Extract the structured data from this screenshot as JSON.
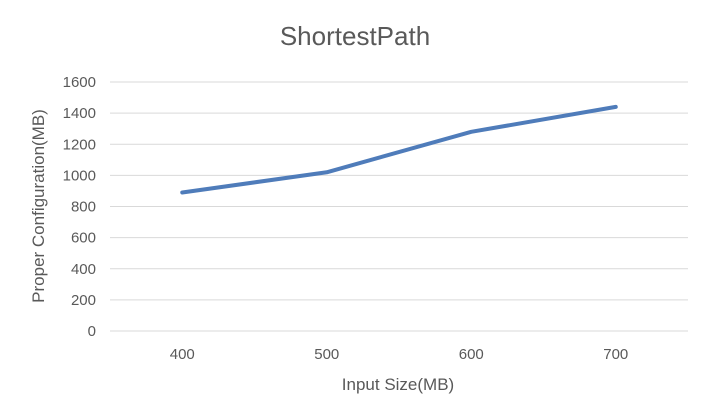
{
  "chart_data": {
    "type": "line",
    "title": "ShortestPath",
    "xlabel": "Input Size(MB)",
    "ylabel": "Proper Configuration(MB)",
    "categories": [
      "400",
      "500",
      "600",
      "700"
    ],
    "series": [
      {
        "values": [
          890,
          1020,
          1280,
          1440
        ]
      }
    ],
    "ylim": [
      0,
      1600
    ],
    "yticks": [
      0,
      200,
      400,
      600,
      800,
      1000,
      1200,
      1400,
      1600
    ],
    "grid": "horizontal",
    "legend": "none",
    "colors": {
      "line": "#4f7cba",
      "grid": "#d9d9d9",
      "text": "#595959"
    }
  }
}
